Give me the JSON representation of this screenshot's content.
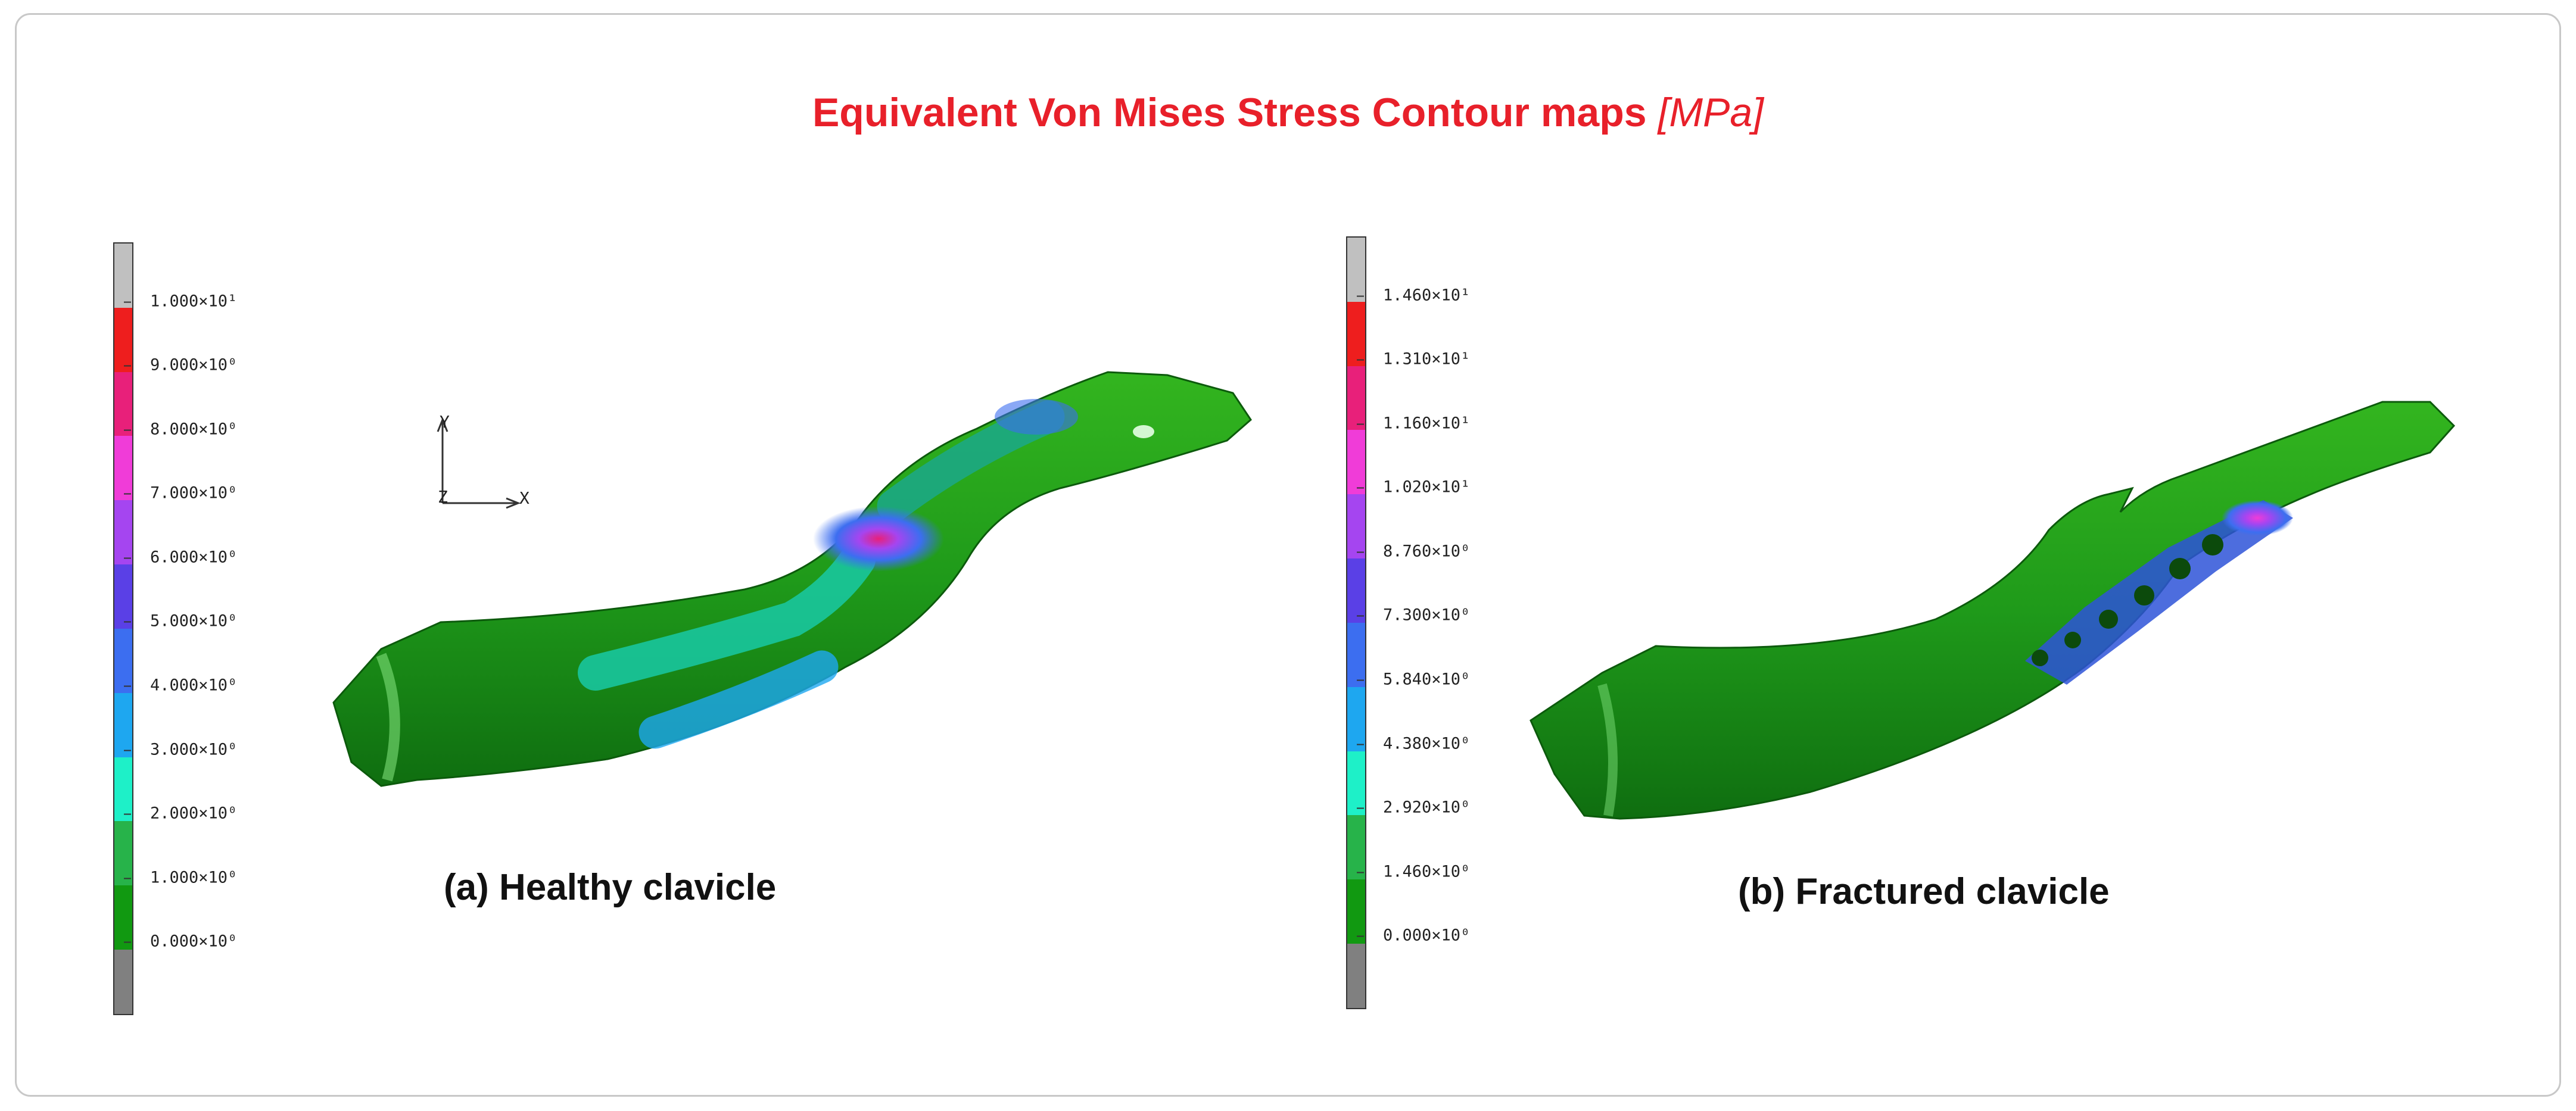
{
  "title": {
    "main": "Equivalent Von Mises Stress Contour maps",
    "unit": "[MPa]"
  },
  "legend_colors": [
    "#808080",
    "#119911",
    "#27b34a",
    "#1ef0c8",
    "#1ea7f0",
    "#3c6ef0",
    "#5a40e6",
    "#a545f0",
    "#f03cd8",
    "#e8207a",
    "#ee1e1e",
    "#c0c0c0"
  ],
  "panels": [
    {
      "label": "(a) Healthy clavicle",
      "ticks": [
        "1.000×10¹",
        "9.000×10⁰",
        "8.000×10⁰",
        "7.000×10⁰",
        "6.000×10⁰",
        "5.000×10⁰",
        "4.000×10⁰",
        "3.000×10⁰",
        "2.000×10⁰",
        "1.000×10⁰",
        "0.000×10⁰"
      ]
    },
    {
      "label": "(b) Fractured clavicle",
      "ticks": [
        "1.460×10¹",
        "1.310×10¹",
        "1.160×10¹",
        "1.020×10¹",
        "8.760×10⁰",
        "7.300×10⁰",
        "5.840×10⁰",
        "4.380×10⁰",
        "2.920×10⁰",
        "1.460×10⁰",
        "0.000×10⁰"
      ]
    }
  ],
  "axes": {
    "y": "Y",
    "z": "Z",
    "x": "X"
  }
}
